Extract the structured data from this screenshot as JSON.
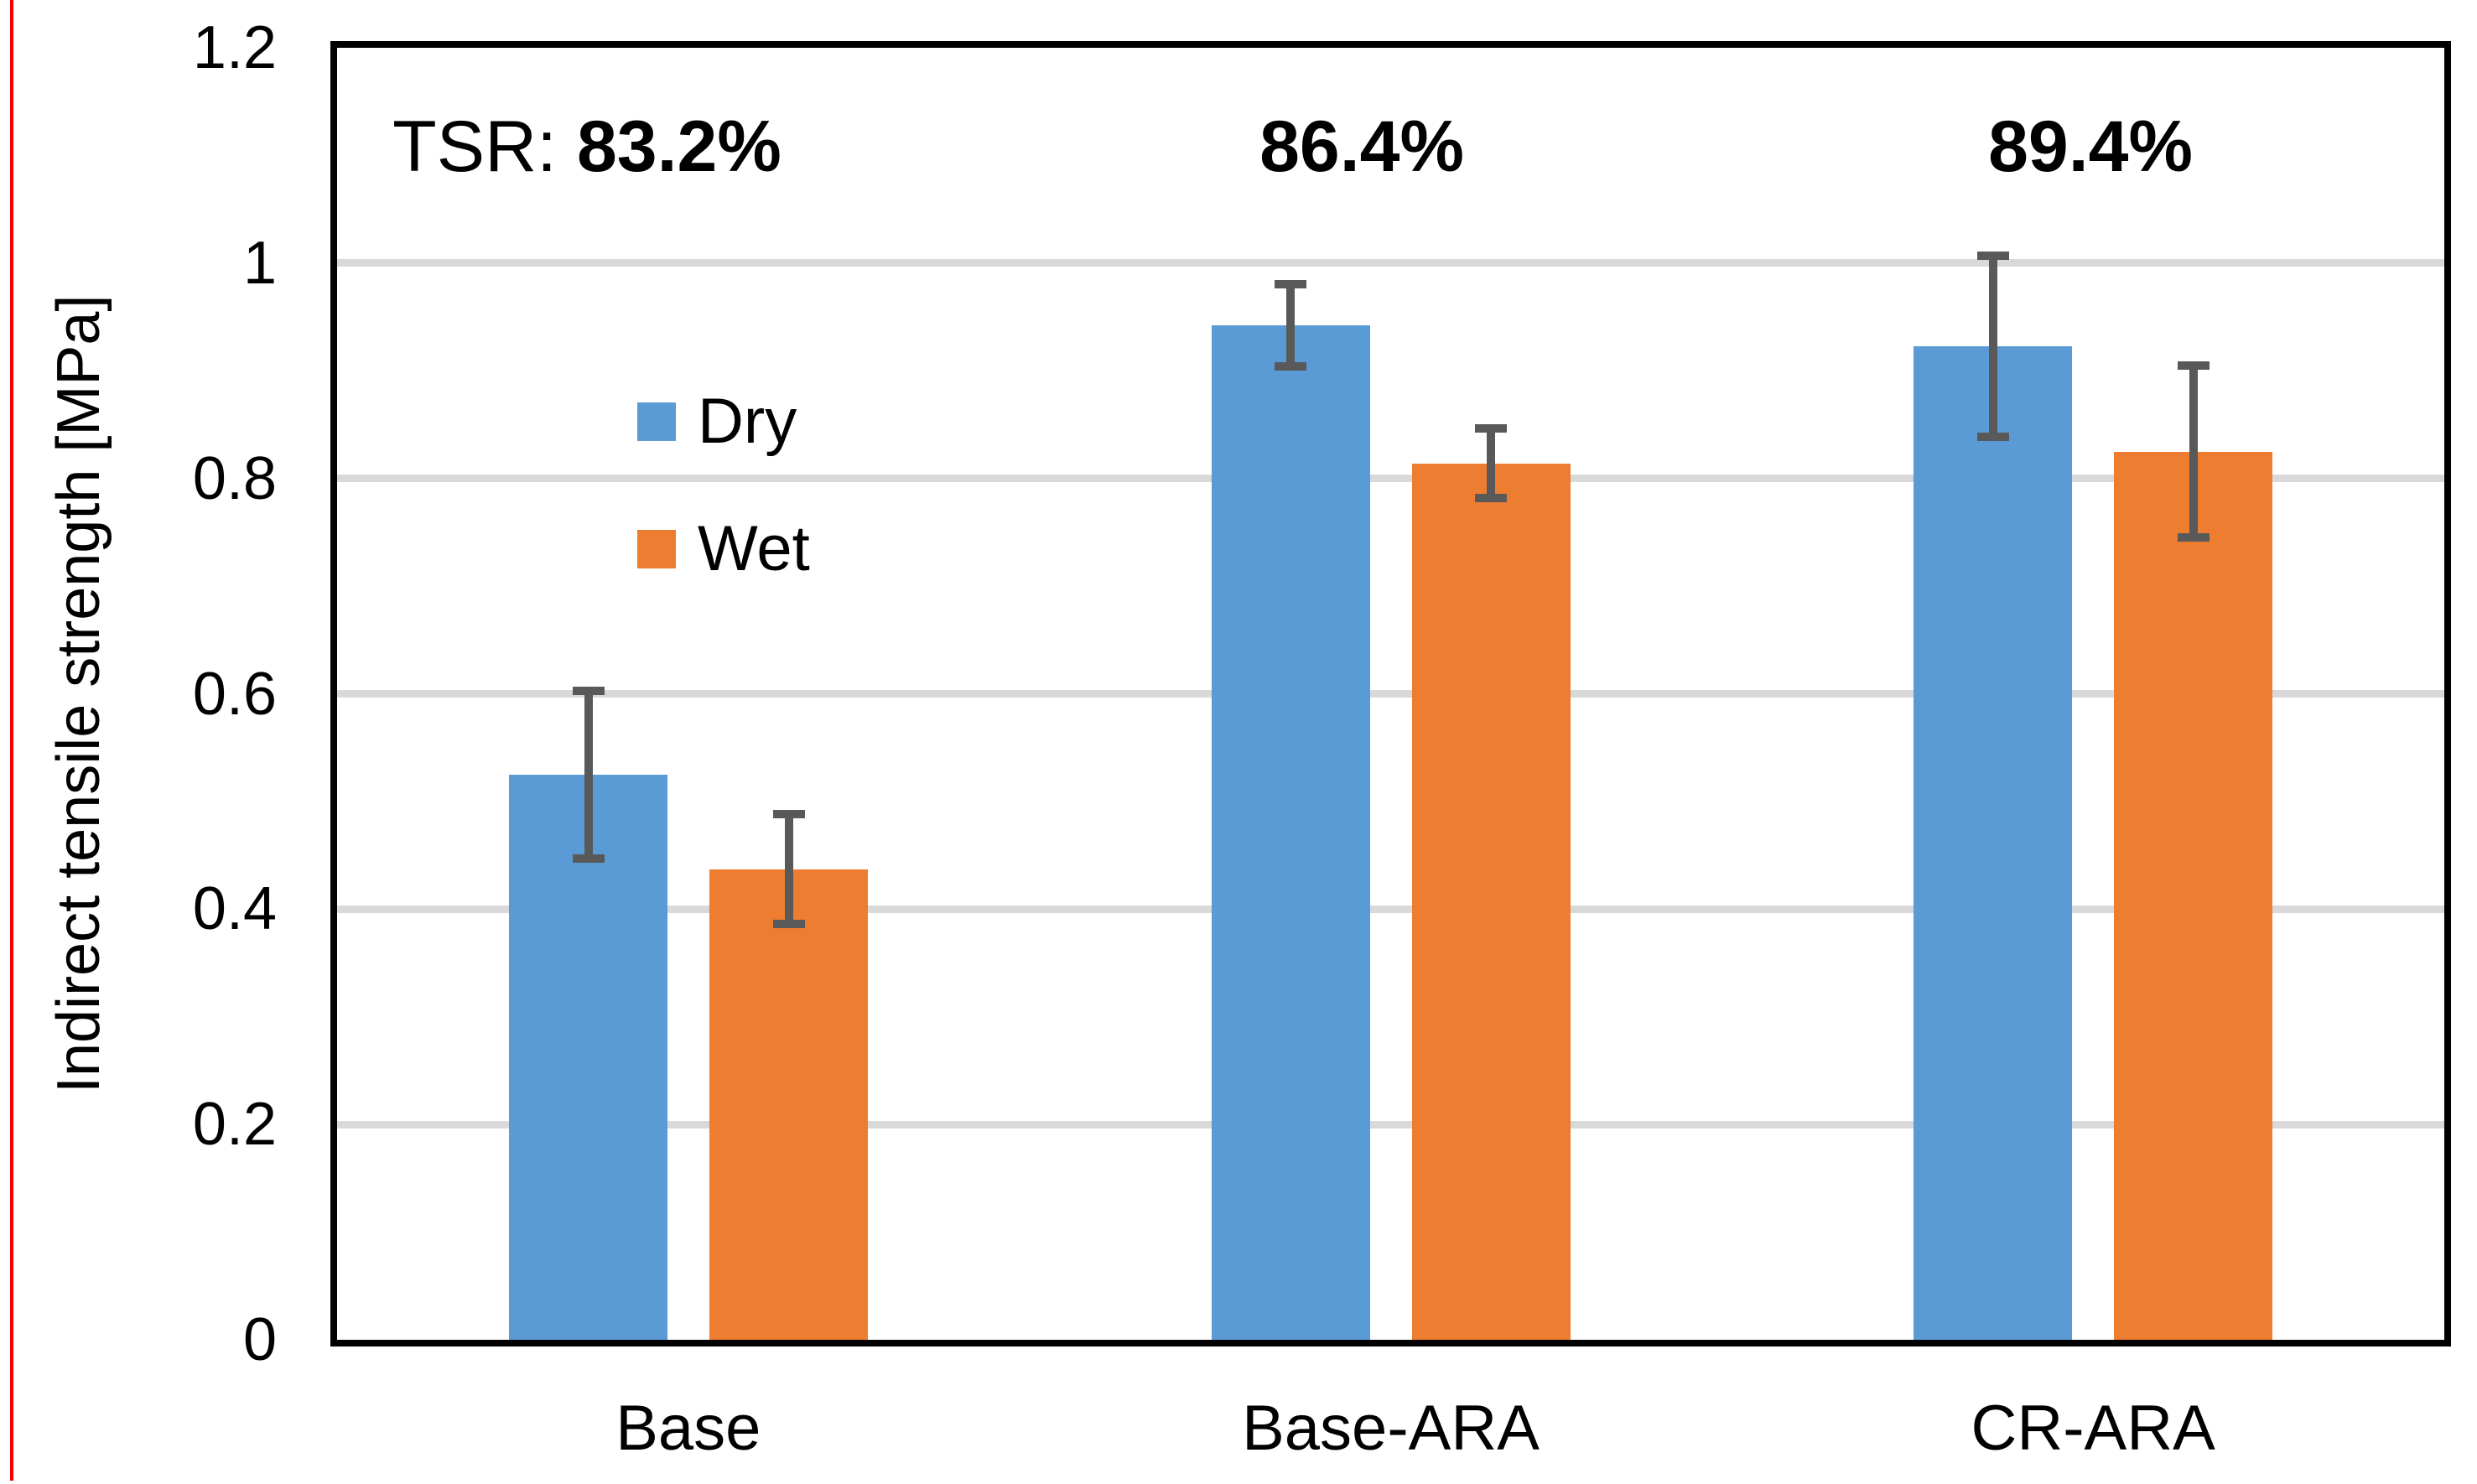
{
  "page": {
    "background": "#FFFFFF",
    "left_edge_line_color": "#EE0000"
  },
  "chart_data": {
    "type": "bar",
    "title": "",
    "xlabel": "",
    "ylabel": "Indirect tensile strength [MPa]",
    "ylim": [
      0,
      1.2
    ],
    "grid": "horizontal",
    "gridline_color": "#D9D9D9",
    "axis_border_color": "#000000",
    "error_bar_color": "#595959",
    "legend_position": "inside-upper-left",
    "yticks": [
      0,
      0.2,
      0.4,
      0.6,
      0.8,
      1,
      1.2
    ],
    "yticklabels": [
      "0",
      "0.2",
      "0.4",
      "0.6",
      "0.8",
      "1",
      "1.2"
    ],
    "categories": [
      "Base",
      "Base-ARA",
      "CR-ARA"
    ],
    "series": [
      {
        "name": "Dry",
        "color": "#5B9BD5",
        "values": [
          0.525,
          0.942,
          0.923
        ],
        "errors": [
          0.082,
          0.042,
          0.088
        ]
      },
      {
        "name": "Wet",
        "color": "#ED7D31",
        "values": [
          0.437,
          0.814,
          0.825
        ],
        "errors": [
          0.055,
          0.036,
          0.084
        ]
      }
    ],
    "annotations": {
      "prefix": "TSR: ",
      "values": [
        "83.2%",
        "86.4%",
        "89.4%"
      ]
    }
  }
}
